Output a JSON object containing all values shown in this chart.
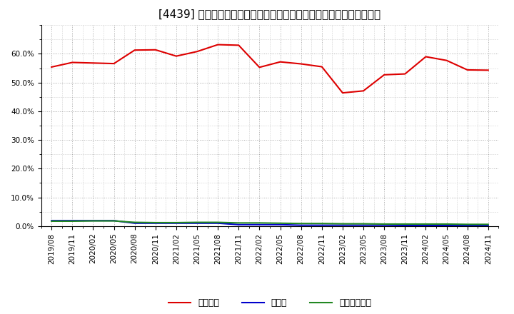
{
  "title": "[4439] 自己資本、のれん、繰延税金資産の総資産に対する比率の推移",
  "dates": [
    "2019/08",
    "2019/11",
    "2020/02",
    "2020/05",
    "2020/08",
    "2020/11",
    "2021/02",
    "2021/05",
    "2021/08",
    "2021/11",
    "2022/02",
    "2022/05",
    "2022/08",
    "2022/11",
    "2023/02",
    "2023/05",
    "2023/08",
    "2023/11",
    "2024/02",
    "2024/05",
    "2024/08",
    "2024/11"
  ],
  "equity": [
    0.554,
    0.57,
    0.568,
    0.566,
    0.613,
    0.614,
    0.592,
    0.608,
    0.632,
    0.63,
    0.553,
    0.572,
    0.565,
    0.555,
    0.464,
    0.471,
    0.527,
    0.53,
    0.59,
    0.577,
    0.544,
    0.543
  ],
  "goodwill": [
    0.019,
    0.019,
    0.019,
    0.019,
    0.01,
    0.01,
    0.01,
    0.01,
    0.01,
    0.005,
    0.005,
    0.005,
    0.003,
    0.003,
    0.003,
    0.003,
    0.003,
    0.002,
    0.002,
    0.002,
    0.002,
    0.002
  ],
  "deferred_tax": [
    0.017,
    0.017,
    0.018,
    0.018,
    0.013,
    0.012,
    0.012,
    0.013,
    0.013,
    0.011,
    0.011,
    0.01,
    0.009,
    0.009,
    0.008,
    0.008,
    0.007,
    0.007,
    0.007,
    0.007,
    0.006,
    0.006
  ],
  "equity_color": "#dd0000",
  "goodwill_color": "#0000cc",
  "deferred_tax_color": "#228822",
  "bg_color": "#ffffff",
  "plot_bg_color": "#ffffff",
  "grid_color": "#aaaaaa",
  "ylim": [
    0.0,
    0.7
  ],
  "yticks": [
    0.0,
    0.1,
    0.2,
    0.3,
    0.4,
    0.5,
    0.6
  ],
  "legend_labels": [
    "自己資本",
    "のれん",
    "繰延税金資産"
  ],
  "title_fontsize": 11,
  "tick_fontsize": 7.5,
  "legend_fontsize": 9
}
